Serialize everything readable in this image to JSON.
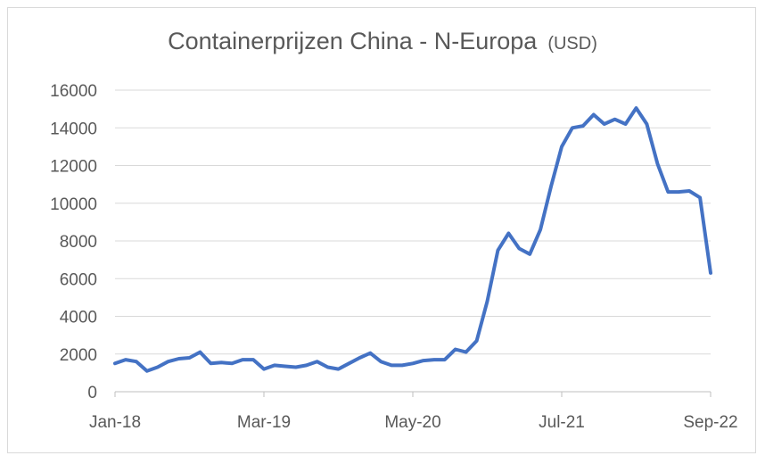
{
  "chart_data": {
    "type": "line",
    "title": "Containerprijzen China - N-Europa",
    "title_unit": "(USD)",
    "xlabel": "",
    "ylabel": "",
    "ylim": [
      0,
      16000
    ],
    "yticks": [
      0,
      2000,
      4000,
      6000,
      8000,
      10000,
      12000,
      14000,
      16000
    ],
    "xticks": [
      "Jan-18",
      "Mar-19",
      "May-20",
      "Jul-21",
      "Sep-22"
    ],
    "grid": true,
    "legend": "none",
    "line_color": "#4472C4",
    "series": [
      {
        "x": [
          "2018-01",
          "2018-02",
          "2018-03",
          "2018-04",
          "2018-05",
          "2018-06",
          "2018-07",
          "2018-08",
          "2018-09",
          "2018-10",
          "2018-11",
          "2018-12",
          "2019-01",
          "2019-02",
          "2019-03",
          "2019-04",
          "2019-05",
          "2019-06",
          "2019-07",
          "2019-08",
          "2019-09",
          "2019-10",
          "2019-11",
          "2019-12",
          "2020-01",
          "2020-02",
          "2020-03",
          "2020-04",
          "2020-05",
          "2020-06",
          "2020-07",
          "2020-08",
          "2020-09",
          "2020-10",
          "2020-11",
          "2020-12",
          "2021-01",
          "2021-02",
          "2021-03",
          "2021-04",
          "2021-05",
          "2021-06",
          "2021-07",
          "2021-08",
          "2021-09",
          "2021-10",
          "2021-11",
          "2021-12",
          "2022-01",
          "2022-02",
          "2022-03",
          "2022-04",
          "2022-05",
          "2022-06",
          "2022-07",
          "2022-08",
          "2022-09"
        ],
        "y": [
          1500,
          1700,
          1600,
          1100,
          1300,
          1600,
          1750,
          1800,
          2100,
          1500,
          1550,
          1500,
          1700,
          1700,
          1200,
          1400,
          1350,
          1300,
          1400,
          1600,
          1300,
          1200,
          1500,
          1800,
          2050,
          1600,
          1400,
          1400,
          1500,
          1650,
          1700,
          1700,
          2250,
          2100,
          2700,
          4800,
          7500,
          8400,
          7600,
          7300,
          8600,
          10900,
          13000,
          14000,
          14100,
          14700,
          14200,
          14450,
          14200,
          15050,
          14200,
          12100,
          10600,
          10600,
          10650,
          10300,
          6300
        ]
      }
    ]
  }
}
